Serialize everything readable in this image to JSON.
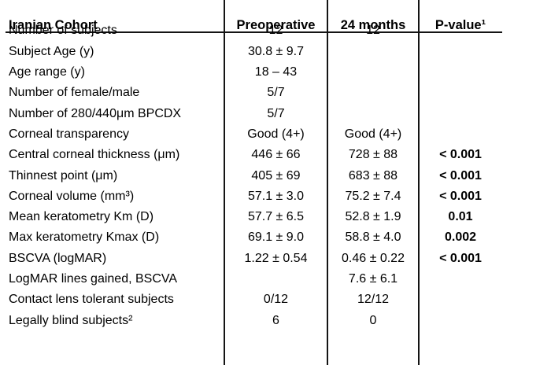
{
  "table": {
    "columns": {
      "cohort": "Iranian Cohort",
      "preoperative": "Preoperative",
      "months_24": "24 months",
      "p_value": "P-value¹"
    },
    "rows": [
      {
        "label": "Number of subjects",
        "preoperative": "12",
        "months_24": "12",
        "p_value": ""
      },
      {
        "label": "Subject Age (y)",
        "preoperative": "30.8 ± 9.7",
        "months_24": "",
        "p_value": ""
      },
      {
        "label": "Age range (y)",
        "preoperative": "18 – 43",
        "months_24": "",
        "p_value": ""
      },
      {
        "label": "Number of female/male",
        "preoperative": "5/7",
        "months_24": "",
        "p_value": ""
      },
      {
        "label": "Number of 280/440μm BPCDX",
        "preoperative": "5/7",
        "months_24": "",
        "p_value": ""
      },
      {
        "label": "Corneal transparency",
        "preoperative": "Good (4+)",
        "months_24": "Good (4+)",
        "p_value": ""
      },
      {
        "label": "Central corneal thickness (μm)",
        "preoperative": "446 ± 66",
        "months_24": "728 ± 88",
        "p_value": "< 0.001"
      },
      {
        "label": "Thinnest point (μm)",
        "preoperative": "405 ± 69",
        "months_24": "683 ± 88",
        "p_value": "< 0.001"
      },
      {
        "label": "Corneal volume (mm³)",
        "preoperative": "57.1 ± 3.0",
        "months_24": "75.2 ± 7.4",
        "p_value": "< 0.001"
      },
      {
        "label": "Mean keratometry Km (D)",
        "preoperative": "57.7 ± 6.5",
        "months_24": "52.8 ± 1.9",
        "p_value": "0.01"
      },
      {
        "label": "Max keratometry Kmax (D)",
        "preoperative": "69.1 ± 9.0",
        "months_24": "58.8 ± 4.0",
        "p_value": "0.002"
      },
      {
        "label": "BSCVA (logMAR)",
        "preoperative": "1.22 ± 0.54",
        "months_24": "0.46 ± 0.22",
        "p_value": "< 0.001"
      },
      {
        "label": "LogMAR lines gained, BSCVA",
        "preoperative": "",
        "months_24": "7.6 ± 6.1",
        "p_value": ""
      },
      {
        "label": "Contact lens tolerant subjects",
        "preoperative": "0/12",
        "months_24": "12/12",
        "p_value": ""
      },
      {
        "label": "Legally blind subjects²",
        "preoperative": "6",
        "months_24": "0",
        "p_value": ""
      }
    ]
  }
}
